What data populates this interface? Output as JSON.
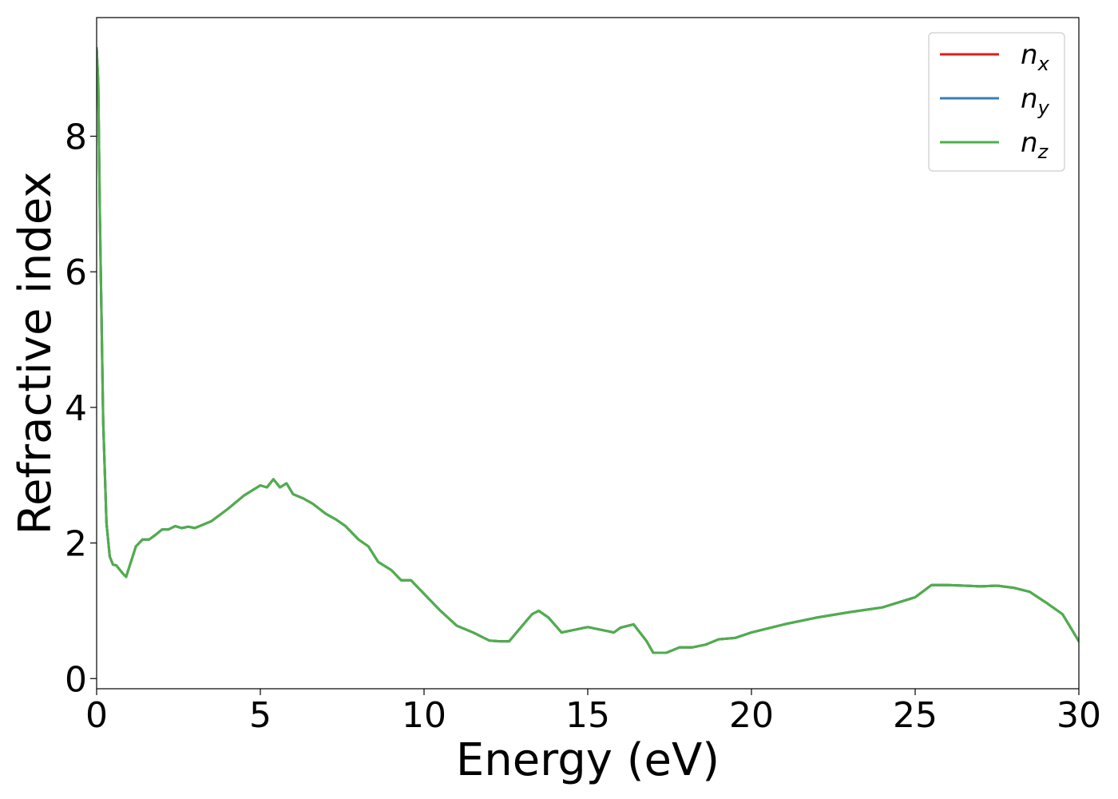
{
  "chart_data": {
    "type": "line",
    "xlabel": "Energy (eV)",
    "ylabel": "Refractive index",
    "xlim": [
      0,
      30
    ],
    "ylim": [
      -0.15,
      9.75
    ],
    "x_ticks": [
      0,
      5,
      10,
      15,
      20,
      25,
      30
    ],
    "y_ticks": [
      0,
      2,
      4,
      6,
      8
    ],
    "grid": false,
    "legend_position": "top-right",
    "x": [
      0.0,
      0.05,
      0.1,
      0.2,
      0.3,
      0.4,
      0.5,
      0.6,
      0.8,
      0.9,
      1.0,
      1.2,
      1.4,
      1.6,
      1.8,
      2.0,
      2.2,
      2.4,
      2.6,
      2.8,
      3.0,
      3.5,
      4.0,
      4.5,
      5.0,
      5.2,
      5.4,
      5.6,
      5.8,
      6.0,
      6.3,
      6.6,
      7.0,
      7.3,
      7.6,
      8.0,
      8.3,
      8.6,
      9.0,
      9.3,
      9.6,
      10.0,
      10.5,
      11.0,
      11.5,
      12.0,
      12.3,
      12.6,
      13.0,
      13.3,
      13.5,
      13.8,
      14.2,
      14.6,
      15.0,
      15.4,
      15.8,
      16.0,
      16.4,
      16.8,
      17.0,
      17.4,
      17.8,
      18.2,
      18.6,
      19.0,
      19.5,
      20.0,
      21.0,
      22.0,
      23.0,
      24.0,
      25.0,
      25.5,
      26.0,
      26.5,
      27.0,
      27.5,
      28.0,
      28.5,
      29.0,
      29.5,
      30.0
    ],
    "series": [
      {
        "name": "n_x",
        "color": "#e41a1c",
        "values": [
          9.3,
          8.8,
          6.8,
          3.8,
          2.3,
          1.8,
          1.68,
          1.67,
          1.55,
          1.5,
          1.65,
          1.95,
          2.05,
          2.05,
          2.12,
          2.2,
          2.2,
          2.25,
          2.22,
          2.24,
          2.22,
          2.32,
          2.5,
          2.7,
          2.85,
          2.82,
          2.94,
          2.82,
          2.88,
          2.72,
          2.66,
          2.58,
          2.43,
          2.35,
          2.25,
          2.05,
          1.95,
          1.72,
          1.6,
          1.45,
          1.45,
          1.25,
          1.0,
          0.78,
          0.68,
          0.56,
          0.55,
          0.55,
          0.78,
          0.95,
          1.0,
          0.9,
          0.68,
          0.72,
          0.76,
          0.72,
          0.68,
          0.75,
          0.8,
          0.55,
          0.38,
          0.38,
          0.46,
          0.46,
          0.5,
          0.58,
          0.6,
          0.68,
          0.8,
          0.9,
          0.98,
          1.05,
          1.2,
          1.38,
          1.38,
          1.37,
          1.36,
          1.37,
          1.34,
          1.28,
          1.12,
          0.95,
          0.55
        ]
      },
      {
        "name": "n_y",
        "color": "#377eb8",
        "values": [
          9.3,
          8.8,
          6.8,
          3.8,
          2.3,
          1.8,
          1.68,
          1.67,
          1.55,
          1.5,
          1.65,
          1.95,
          2.05,
          2.05,
          2.12,
          2.2,
          2.2,
          2.25,
          2.22,
          2.24,
          2.22,
          2.32,
          2.5,
          2.7,
          2.85,
          2.82,
          2.94,
          2.82,
          2.88,
          2.72,
          2.66,
          2.58,
          2.43,
          2.35,
          2.25,
          2.05,
          1.95,
          1.72,
          1.6,
          1.45,
          1.45,
          1.25,
          1.0,
          0.78,
          0.68,
          0.56,
          0.55,
          0.55,
          0.78,
          0.95,
          1.0,
          0.9,
          0.68,
          0.72,
          0.76,
          0.72,
          0.68,
          0.75,
          0.8,
          0.55,
          0.38,
          0.38,
          0.46,
          0.46,
          0.5,
          0.58,
          0.6,
          0.68,
          0.8,
          0.9,
          0.98,
          1.05,
          1.2,
          1.38,
          1.38,
          1.37,
          1.36,
          1.37,
          1.34,
          1.28,
          1.12,
          0.95,
          0.55
        ]
      },
      {
        "name": "n_z",
        "color": "#4daf4a",
        "values": [
          9.3,
          8.8,
          6.8,
          3.8,
          2.3,
          1.8,
          1.68,
          1.67,
          1.55,
          1.5,
          1.65,
          1.95,
          2.05,
          2.05,
          2.12,
          2.2,
          2.2,
          2.25,
          2.22,
          2.24,
          2.22,
          2.32,
          2.5,
          2.7,
          2.85,
          2.82,
          2.94,
          2.82,
          2.88,
          2.72,
          2.66,
          2.58,
          2.43,
          2.35,
          2.25,
          2.05,
          1.95,
          1.72,
          1.6,
          1.45,
          1.45,
          1.25,
          1.0,
          0.78,
          0.68,
          0.56,
          0.55,
          0.55,
          0.78,
          0.95,
          1.0,
          0.9,
          0.68,
          0.72,
          0.76,
          0.72,
          0.68,
          0.75,
          0.8,
          0.55,
          0.38,
          0.38,
          0.46,
          0.46,
          0.5,
          0.58,
          0.6,
          0.68,
          0.8,
          0.9,
          0.98,
          1.05,
          1.2,
          1.38,
          1.38,
          1.37,
          1.36,
          1.37,
          1.34,
          1.28,
          1.12,
          0.95,
          0.55
        ]
      }
    ],
    "legend": [
      {
        "base": "n",
        "sub": "x"
      },
      {
        "base": "n",
        "sub": "y"
      },
      {
        "base": "n",
        "sub": "z"
      }
    ]
  }
}
